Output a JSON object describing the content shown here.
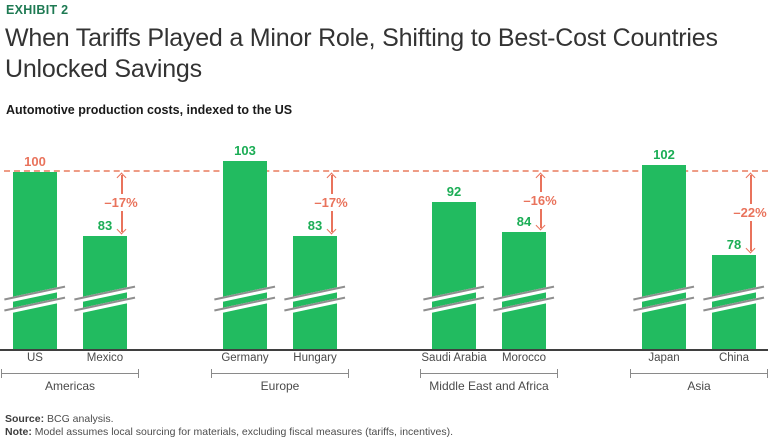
{
  "header": {
    "exhibit": "EXHIBIT 2",
    "title_lines": [
      "When Tariffs Played a Minor Role, Shifting to Best-Cost Countries",
      "Unlocked Savings"
    ],
    "subtitle": "Automotive production costs, indexed to the US"
  },
  "chart_data": {
    "type": "bar",
    "title": "Automotive production costs, indexed to the US",
    "reference_line": {
      "value": 100,
      "style": "dashed"
    },
    "axis_break": true,
    "grid": false,
    "groups": [
      {
        "region": "Americas",
        "bars": [
          {
            "country": "US",
            "value": 100,
            "is_reference": true
          },
          {
            "country": "Mexico",
            "value": 83
          }
        ],
        "delta_label": "–17%"
      },
      {
        "region": "Europe",
        "bars": [
          {
            "country": "Germany",
            "value": 103
          },
          {
            "country": "Hungary",
            "value": 83
          }
        ],
        "delta_label": "–17%"
      },
      {
        "region": "Middle East and Africa",
        "bars": [
          {
            "country": "Saudi Arabia",
            "value": 92
          },
          {
            "country": "Morocco",
            "value": 84
          }
        ],
        "delta_label": "–16%"
      },
      {
        "region": "Asia",
        "bars": [
          {
            "country": "Japan",
            "value": 102
          },
          {
            "country": "China",
            "value": 78
          }
        ],
        "delta_label": "–22%"
      }
    ],
    "colors": {
      "bar": "#22bb60",
      "value_label": "#1bad55",
      "reference_accent": "#e9735c",
      "reference_line": "#ee9c86",
      "axis": "#3f3f3f",
      "label_text": "#4a4a4a"
    }
  },
  "footer": {
    "source_label": "Source:",
    "source_text": "BCG analysis.",
    "note_label": "Note:",
    "note_text": "Model assumes local sourcing for materials, excluding fiscal measures (tariffs, incentives)."
  }
}
